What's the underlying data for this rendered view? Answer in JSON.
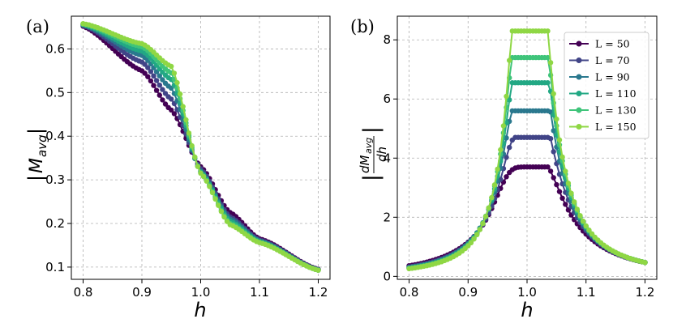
{
  "colors": {
    "L50": "#440154",
    "L70": "#414487",
    "L90": "#2a788e",
    "L110": "#22a884",
    "L130": "#3fc47a",
    "L150": "#8fd744"
  },
  "chart_data": [
    {
      "type": "line",
      "panel_label": "(a)",
      "xlabel": "h",
      "ylabel": "|M_avg|",
      "ylabel_display": {
        "bar": "|",
        "base": "M",
        "sub": "avg"
      },
      "xlim": [
        0.78,
        1.22
      ],
      "ylim": [
        0.072,
        0.675
      ],
      "xticks": [
        0.8,
        0.9,
        1.0,
        1.1,
        1.2
      ],
      "xtick_labels": [
        "0.8",
        "0.9",
        "1.0",
        "1.1",
        "1.2"
      ],
      "yticks": [
        0.1,
        0.2,
        0.3,
        0.4,
        0.5,
        0.6
      ],
      "ytick_labels": [
        "0.1",
        "0.2",
        "0.3",
        "0.4",
        "0.5",
        "0.6"
      ],
      "grid": true,
      "x_range": [
        0.8,
        1.2
      ],
      "points_per_series": 81,
      "series": [
        {
          "name": "L = 50",
          "color": "#440154",
          "L": 50,
          "key_points": {
            "x": [
              0.8,
              0.9,
              0.95,
              1.0,
              1.05,
              1.1,
              1.2
            ],
            "y": [
              0.652,
              0.55,
              0.46,
              0.33,
              0.225,
              0.165,
              0.095
            ]
          }
        },
        {
          "name": "L = 70",
          "color": "#414487",
          "L": 70,
          "key_points": {
            "x": [
              0.8,
              0.9,
              0.95,
              1.0,
              1.05,
              1.1,
              1.2
            ],
            "y": [
              0.654,
              0.57,
              0.485,
              0.325,
              0.215,
              0.162,
              0.094
            ]
          }
        },
        {
          "name": "L = 90",
          "color": "#2a788e",
          "L": 90,
          "key_points": {
            "x": [
              0.8,
              0.9,
              0.95,
              1.0,
              1.05,
              1.1,
              1.2
            ],
            "y": [
              0.655,
              0.585,
              0.51,
              0.32,
              0.21,
              0.16,
              0.094
            ]
          }
        },
        {
          "name": "L = 110",
          "color": "#22a884",
          "L": 110,
          "key_points": {
            "x": [
              0.8,
              0.9,
              0.95,
              1.0,
              1.05,
              1.1,
              1.2
            ],
            "y": [
              0.656,
              0.595,
              0.53,
              0.318,
              0.205,
              0.158,
              0.093
            ]
          }
        },
        {
          "name": "L = 130",
          "color": "#3fc47a",
          "L": 130,
          "key_points": {
            "x": [
              0.8,
              0.9,
              0.95,
              1.0,
              1.05,
              1.1,
              1.2
            ],
            "y": [
              0.657,
              0.605,
              0.545,
              0.316,
              0.2,
              0.157,
              0.093
            ]
          }
        },
        {
          "name": "L = 150",
          "color": "#8fd744",
          "L": 150,
          "key_points": {
            "x": [
              0.8,
              0.9,
              0.95,
              1.0,
              1.05,
              1.1,
              1.2
            ],
            "y": [
              0.658,
              0.612,
              0.56,
              0.315,
              0.197,
              0.156,
              0.093
            ]
          }
        }
      ]
    },
    {
      "type": "line",
      "panel_label": "(b)",
      "xlabel": "h",
      "ylabel": "|dM_avg/dh|",
      "ylabel_display": {
        "bar": "|",
        "num_base": "dM",
        "num_sub": "avg",
        "den": "dh"
      },
      "xlim": [
        0.78,
        1.22
      ],
      "ylim": [
        -0.1,
        8.8
      ],
      "xticks": [
        0.8,
        0.9,
        1.0,
        1.1,
        1.2
      ],
      "xtick_labels": [
        "0.8",
        "0.9",
        "1.0",
        "1.1",
        "1.2"
      ],
      "yticks": [
        0,
        2,
        4,
        6,
        8
      ],
      "ytick_labels": [
        "0",
        "2",
        "4",
        "6",
        "8"
      ],
      "grid": true,
      "legend_position": "top-right",
      "x_range": [
        0.8,
        1.2
      ],
      "points_per_series": 81,
      "series": [
        {
          "name": "L = 50",
          "color": "#440154",
          "L": 50,
          "peak_x": 0.995,
          "peak_y": 3.7,
          "value_at_0.8": 0.36,
          "value_at_1.2": 0.47
        },
        {
          "name": "L = 70",
          "color": "#414487",
          "L": 70,
          "peak_x": 0.995,
          "peak_y": 4.7,
          "value_at_0.8": 0.32,
          "value_at_1.2": 0.47
        },
        {
          "name": "L = 90",
          "color": "#2a788e",
          "L": 90,
          "peak_x": 0.995,
          "peak_y": 5.6,
          "value_at_0.8": 0.3,
          "value_at_1.2": 0.47
        },
        {
          "name": "L = 110",
          "color": "#22a884",
          "L": 110,
          "peak_x": 0.995,
          "peak_y": 6.55,
          "value_at_0.8": 0.28,
          "value_at_1.2": 0.47
        },
        {
          "name": "L = 130",
          "color": "#3fc47a",
          "L": 130,
          "peak_x": 0.995,
          "peak_y": 7.4,
          "value_at_0.8": 0.27,
          "value_at_1.2": 0.47
        },
        {
          "name": "L = 150",
          "color": "#8fd744",
          "L": 150,
          "peak_x": 0.995,
          "peak_y": 8.3,
          "value_at_0.8": 0.26,
          "value_at_1.2": 0.47
        }
      ],
      "legend": [
        "L = 50",
        "L = 70",
        "L = 90",
        "L = 110",
        "L = 130",
        "L = 150"
      ]
    }
  ]
}
